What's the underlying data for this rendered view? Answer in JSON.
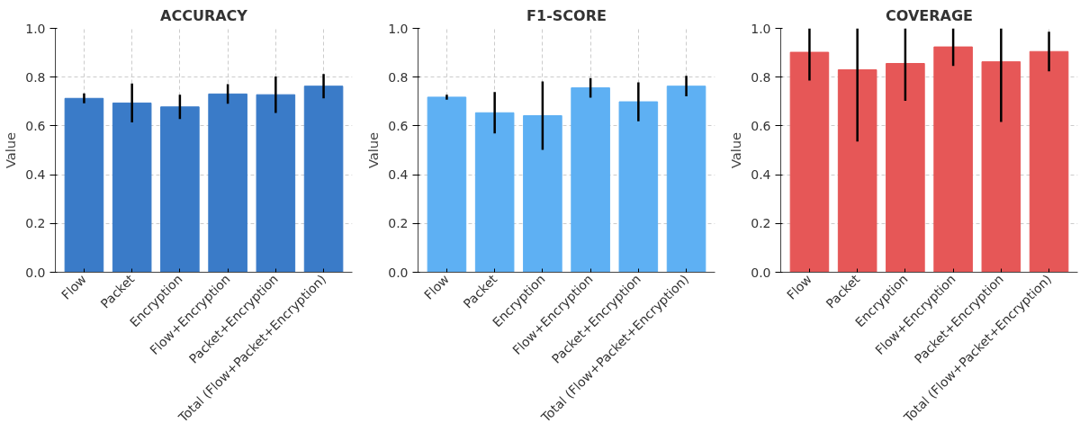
{
  "chart_data": [
    {
      "type": "bar",
      "title": "ACCURACY",
      "ylabel": "Value",
      "categories": [
        "Flow",
        "Packet",
        "Encryption",
        "Flow+Encryption",
        "Packet+Encryption",
        "Total (Flow+Packet+Encryption)"
      ],
      "color": "#3a7bc8",
      "values": [
        0.713,
        0.694,
        0.678,
        0.731,
        0.728,
        0.763
      ],
      "errors": [
        0.02,
        0.08,
        0.05,
        0.04,
        0.075,
        0.05
      ],
      "ylim": [
        0,
        1
      ],
      "yticks": [
        {
          "value": 0,
          "label": "0.0"
        },
        {
          "value": 0.2,
          "label": "0.2"
        },
        {
          "value": 0.4,
          "label": "0.4"
        },
        {
          "value": 0.6,
          "label": "0.6"
        },
        {
          "value": 0.8,
          "label": "0.8"
        },
        {
          "value": 1,
          "label": "1.0"
        }
      ],
      "grid": true
    },
    {
      "type": "bar",
      "title": "F1-SCORE",
      "ylabel": "Value",
      "categories": [
        "Flow",
        "Packet",
        "Encryption",
        "Flow+Encryption",
        "Packet+Encryption",
        "Total (Flow+Packet+Encryption)"
      ],
      "color": "#5eb0f3",
      "values": [
        0.718,
        0.654,
        0.642,
        0.756,
        0.699,
        0.763
      ],
      "errors": [
        0.01,
        0.085,
        0.14,
        0.04,
        0.08,
        0.042
      ],
      "ylim": [
        0,
        1
      ],
      "yticks": [
        {
          "value": 0,
          "label": "0.0"
        },
        {
          "value": 0.2,
          "label": "0.2"
        },
        {
          "value": 0.4,
          "label": "0.4"
        },
        {
          "value": 0.6,
          "label": "0.6"
        },
        {
          "value": 0.8,
          "label": "0.8"
        },
        {
          "value": 1,
          "label": "1.0"
        }
      ],
      "grid": true
    },
    {
      "type": "bar",
      "title": "COVERAGE",
      "ylabel": "Value",
      "categories": [
        "Flow",
        "Packet",
        "Encryption",
        "Flow+Encryption",
        "Packet+Encryption",
        "Total (Flow+Packet+Encryption)"
      ],
      "color": "#e65757",
      "values": [
        0.902,
        0.83,
        0.856,
        0.924,
        0.863,
        0.905
      ],
      "errors": [
        [
          0.786,
          1.0
        ],
        [
          0.536,
          1.0
        ],
        [
          0.703,
          1.0
        ],
        [
          0.846,
          1.0
        ],
        [
          0.616,
          1.0
        ],
        [
          0.824,
          0.986
        ]
      ],
      "ylim": [
        0,
        1
      ],
      "yticks": [
        {
          "value": 0,
          "label": "0.0"
        },
        {
          "value": 0.2,
          "label": "0.2"
        },
        {
          "value": 0.4,
          "label": "0.4"
        },
        {
          "value": 0.6,
          "label": "0.6"
        },
        {
          "value": 0.8,
          "label": "0.8"
        },
        {
          "value": 1,
          "label": "1.0"
        }
      ],
      "grid": true
    }
  ]
}
